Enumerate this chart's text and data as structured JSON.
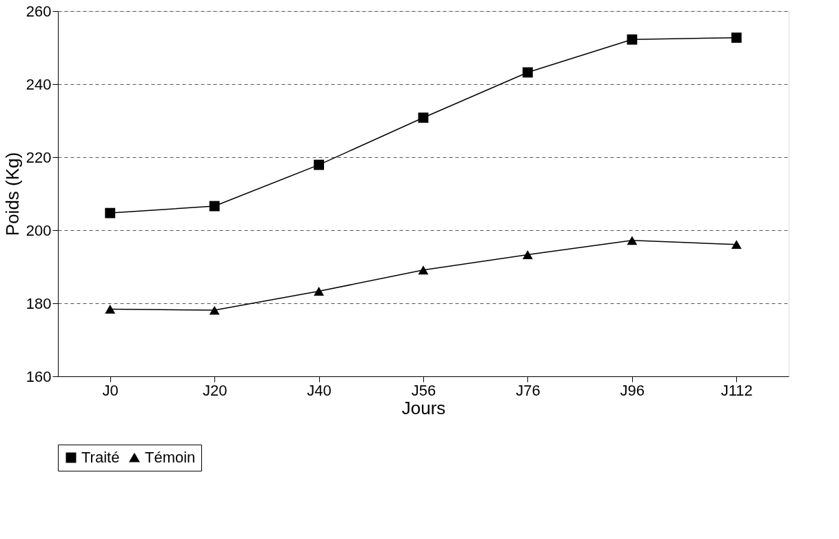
{
  "chart_data": {
    "type": "line",
    "xlabel": "Jours",
    "ylabel": "Poids (Kg)",
    "categories": [
      "J0",
      "J20",
      "J40",
      "J56",
      "J76",
      "J96",
      "J112"
    ],
    "series": [
      {
        "name": "Traité",
        "color": "#000000",
        "marker": "square",
        "values": [
          204.7,
          206.6,
          217.9,
          230.8,
          243.2,
          252.2,
          252.7
        ]
      },
      {
        "name": "Témoin",
        "color": "#000000",
        "marker": "triangle",
        "values": [
          178.4,
          178.1,
          183.3,
          189.1,
          193.3,
          197.2,
          196.1
        ]
      }
    ],
    "ylim": [
      160,
      260
    ],
    "yticks": [
      160,
      180,
      200,
      220,
      240,
      260
    ],
    "grid": "y",
    "legend": "bottom",
    "line_style": "solid"
  }
}
